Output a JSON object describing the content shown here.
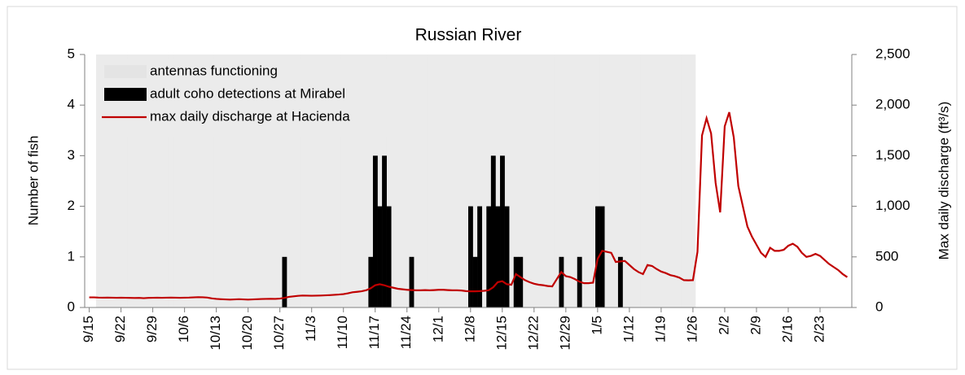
{
  "chart_data": {
    "type": "bar",
    "title": "Russian River",
    "ylabel": "Number of fish",
    "y2label": "Max daily discharge (ft³/s)",
    "ylim": [
      0,
      5
    ],
    "yticks": [
      0,
      1,
      2,
      3,
      4,
      5
    ],
    "y2lim": [
      0,
      2500
    ],
    "y2ticks": [
      0,
      500,
      {
        "value": 1000,
        "label": "1,000"
      },
      {
        "value": 1500,
        "label": "1,500"
      },
      {
        "value": 2000,
        "label": "2,000"
      },
      {
        "value": 2500,
        "label": "2,500"
      }
    ],
    "legend": "upper left",
    "categories": [
      "9/15",
      null,
      null,
      null,
      null,
      null,
      null,
      "9/22",
      null,
      null,
      null,
      null,
      null,
      null,
      "9/29",
      null,
      null,
      null,
      null,
      null,
      null,
      "10/6",
      null,
      null,
      null,
      null,
      null,
      null,
      "10/13",
      null,
      null,
      null,
      null,
      null,
      null,
      "10/20",
      null,
      null,
      null,
      null,
      null,
      null,
      "10/27",
      null,
      null,
      null,
      null,
      null,
      null,
      "11/3",
      null,
      null,
      null,
      null,
      null,
      null,
      "11/10",
      null,
      null,
      null,
      null,
      null,
      null,
      "11/17",
      null,
      null,
      null,
      null,
      null,
      null,
      "11/24",
      null,
      null,
      null,
      null,
      null,
      null,
      "12/1",
      null,
      null,
      null,
      null,
      null,
      null,
      "12/8",
      null,
      null,
      null,
      null,
      null,
      null,
      "12/15",
      null,
      null,
      null,
      null,
      null,
      null,
      "12/22",
      null,
      null,
      null,
      null,
      null,
      null,
      "12/29",
      null,
      null,
      null,
      null,
      null,
      null,
      "1/5",
      null,
      null,
      null,
      null,
      null,
      null,
      "1/12",
      null,
      null,
      null,
      null,
      null,
      null,
      "1/19",
      null,
      null,
      null,
      null,
      null,
      null,
      "1/26",
      null,
      null,
      null,
      null,
      null,
      null,
      "2/2",
      null,
      null,
      null,
      null,
      null,
      null,
      "2/9",
      null,
      null,
      null,
      null,
      null,
      null,
      "2/16",
      null,
      null,
      null,
      null,
      null,
      null,
      "2/23",
      null,
      null,
      null,
      null,
      null,
      null
    ],
    "series": [
      {
        "name": "antennas functioning",
        "type": "span",
        "color": "#ebebeb",
        "values": [
          null,
          null,
          5,
          5,
          5,
          5,
          5,
          5,
          5,
          5,
          5,
          5,
          5,
          5,
          5,
          5,
          5,
          5,
          5,
          5,
          5,
          5,
          5,
          5,
          5,
          5,
          5,
          5,
          5,
          5,
          5,
          5,
          5,
          5,
          5,
          5,
          5,
          5,
          5,
          5,
          5,
          5,
          5,
          5,
          5,
          5,
          5,
          5,
          5,
          5,
          5,
          5,
          5,
          5,
          5,
          5,
          5,
          5,
          5,
          5,
          5,
          5,
          5,
          5,
          5,
          5,
          5,
          5,
          5,
          5,
          5,
          5,
          5,
          5,
          5,
          5,
          5,
          5,
          5,
          5,
          5,
          5,
          5,
          5,
          5,
          5,
          5,
          5,
          5,
          5,
          5,
          5,
          5,
          5,
          5,
          5,
          5,
          5,
          5,
          5,
          5,
          5,
          5,
          5,
          5,
          5,
          5,
          5,
          5,
          5,
          5,
          5,
          5,
          5,
          5,
          5,
          5,
          5,
          5,
          5,
          5,
          5,
          5,
          5,
          5,
          5,
          5,
          5,
          5,
          5,
          5,
          5,
          5,
          5,
          null,
          null,
          null,
          null,
          null,
          null,
          null,
          null,
          null,
          null,
          null,
          null,
          null,
          null,
          null,
          null,
          null,
          null,
          null,
          null,
          null,
          null,
          null,
          null,
          null,
          null,
          null,
          null,
          null,
          null,
          null,
          null,
          null,
          null
        ]
      },
      {
        "name": "adult coho detections at Mirabel",
        "type": "bar",
        "color": "#000000",
        "values": [
          0,
          0,
          0,
          0,
          0,
          0,
          0,
          0,
          0,
          0,
          0,
          0,
          0,
          0,
          0,
          0,
          0,
          0,
          0,
          0,
          0,
          0,
          0,
          0,
          0,
          0,
          0,
          0,
          0,
          0,
          0,
          0,
          0,
          0,
          0,
          0,
          0,
          0,
          0,
          0,
          0,
          0,
          0,
          1,
          0,
          0,
          0,
          0,
          0,
          0,
          0,
          0,
          0,
          0,
          0,
          0,
          0,
          0,
          0,
          0,
          0,
          0,
          1,
          3,
          2,
          3,
          2,
          0,
          0,
          0,
          0,
          1,
          0,
          0,
          0,
          0,
          0,
          0,
          0,
          0,
          0,
          0,
          0,
          0,
          2,
          1,
          2,
          0,
          2,
          3,
          2,
          3,
          2,
          0,
          1,
          1,
          0,
          0,
          0,
          0,
          0,
          0,
          0,
          0,
          1,
          0,
          0,
          0,
          1,
          0,
          0,
          0,
          2,
          2,
          0,
          0,
          0,
          1,
          0,
          0,
          0,
          0,
          0,
          0,
          0,
          0,
          0,
          0,
          0,
          0,
          0,
          0,
          0,
          0,
          0,
          0,
          0,
          0,
          0,
          0,
          0,
          0,
          0,
          0,
          0,
          0,
          0,
          0,
          0,
          0,
          0,
          0,
          0,
          0,
          0,
          0,
          0,
          0,
          0,
          0,
          0,
          0,
          0,
          0,
          0,
          0,
          0,
          0
        ]
      },
      {
        "name": "max daily discharge at Hacienda",
        "type": "line",
        "axis": "y2",
        "color": "#c00000",
        "values": [
          100,
          100,
          98,
          97,
          98,
          97,
          96,
          97,
          96,
          95,
          94,
          95,
          92,
          95,
          96,
          97,
          96,
          97,
          98,
          97,
          96,
          97,
          98,
          100,
          102,
          101,
          98,
          90,
          85,
          82,
          80,
          78,
          80,
          82,
          80,
          78,
          80,
          82,
          84,
          85,
          86,
          85,
          88,
          95,
          105,
          110,
          115,
          118,
          117,
          116,
          117,
          118,
          120,
          122,
          125,
          128,
          132,
          140,
          150,
          155,
          160,
          170,
          190,
          220,
          230,
          220,
          205,
          195,
          185,
          180,
          175,
          172,
          170,
          170,
          172,
          170,
          172,
          175,
          175,
          172,
          170,
          170,
          168,
          162,
          160,
          160,
          162,
          165,
          170,
          200,
          250,
          260,
          230,
          225,
          330,
          300,
          270,
          250,
          235,
          225,
          220,
          212,
          208,
          280,
          350,
          310,
          300,
          280,
          255,
          240,
          240,
          245,
          480,
          560,
          550,
          540,
          450,
          455,
          460,
          420,
          380,
          350,
          330,
          420,
          410,
          380,
          355,
          340,
          320,
          310,
          295,
          270,
          268,
          270,
          550,
          1700,
          1870,
          1720,
          1230,
          940,
          1790,
          1930,
          1680,
          1200,
          1000,
          800,
          700,
          620,
          540,
          500,
          590,
          560,
          560,
          570,
          610,
          630,
          600,
          540,
          500,
          510,
          530,
          510,
          470,
          430,
          400,
          370,
          330,
          300
        ]
      }
    ]
  }
}
